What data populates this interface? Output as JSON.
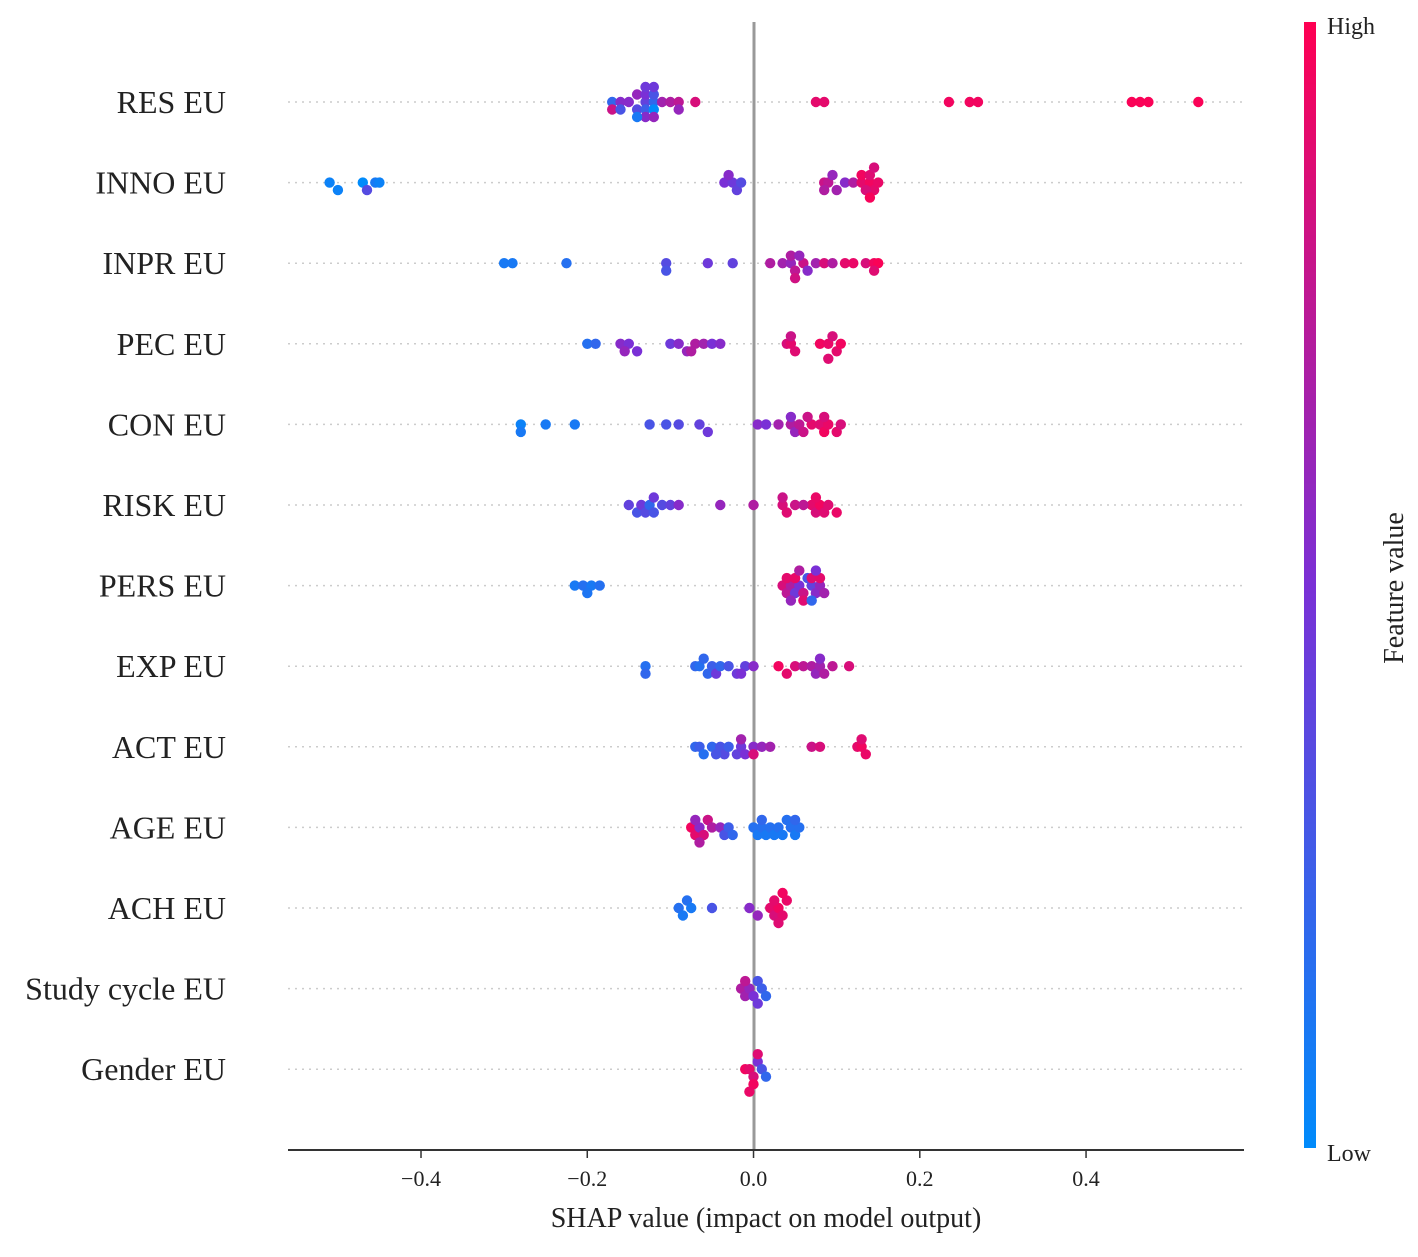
{
  "chart_data": {
    "type": "scatter",
    "subtype": "shap-beeswarm",
    "xlabel": "SHAP value (impact on model output)",
    "xlim": [
      -0.56,
      0.59
    ],
    "xticks": [
      {
        "value": -0.4,
        "label": "−0.4"
      },
      {
        "value": -0.2,
        "label": "−0.2"
      },
      {
        "value": 0.0,
        "label": "0.0"
      },
      {
        "value": 0.2,
        "label": "0.2"
      },
      {
        "value": 0.4,
        "label": "0.4"
      }
    ],
    "colorbar": {
      "title": "Feature value",
      "high_label": "High",
      "low_label": "Low",
      "colors": [
        "#008bfb",
        "#7a30d6",
        "#ff0052"
      ]
    },
    "features": [
      {
        "name": "RES EU",
        "points": [
          [
            -0.17,
            0.2
          ],
          [
            -0.16,
            0.55
          ],
          [
            -0.17,
            0.8
          ],
          [
            -0.16,
            0.3
          ],
          [
            -0.15,
            0.55
          ],
          [
            -0.14,
            0.35
          ],
          [
            -0.14,
            0.6
          ],
          [
            -0.13,
            0.4
          ],
          [
            -0.13,
            0.25
          ],
          [
            -0.13,
            0.5
          ],
          [
            -0.12,
            0.2
          ],
          [
            -0.12,
            0.0
          ],
          [
            -0.12,
            0.3
          ],
          [
            -0.13,
            0.55
          ],
          [
            -0.12,
            0.6
          ],
          [
            -0.11,
            0.65
          ],
          [
            -0.1,
            0.7
          ],
          [
            -0.09,
            0.75
          ],
          [
            -0.09,
            0.6
          ],
          [
            -0.07,
            0.85
          ],
          [
            -0.14,
            0.1
          ],
          [
            -0.13,
            0.45
          ],
          [
            -0.12,
            0.45
          ],
          [
            0.075,
            0.9
          ],
          [
            0.085,
            0.9
          ],
          [
            0.235,
            0.95
          ],
          [
            0.26,
            0.95
          ],
          [
            0.27,
            0.95
          ],
          [
            0.455,
            0.98
          ],
          [
            0.465,
            0.98
          ],
          [
            0.475,
            0.98
          ],
          [
            0.535,
            0.98
          ]
        ]
      },
      {
        "name": "INNO EU",
        "points": [
          [
            -0.51,
            0.05
          ],
          [
            -0.5,
            0.05
          ],
          [
            -0.47,
            0.0
          ],
          [
            -0.465,
            0.35
          ],
          [
            -0.455,
            0.1
          ],
          [
            -0.45,
            0.05
          ],
          [
            -0.035,
            0.5
          ],
          [
            -0.025,
            0.45
          ],
          [
            -0.02,
            0.4
          ],
          [
            -0.015,
            0.35
          ],
          [
            -0.03,
            0.55
          ],
          [
            0.085,
            0.8
          ],
          [
            0.09,
            0.75
          ],
          [
            0.1,
            0.65
          ],
          [
            0.11,
            0.55
          ],
          [
            0.12,
            0.7
          ],
          [
            0.13,
            0.9
          ],
          [
            0.14,
            0.95
          ],
          [
            0.145,
            0.9
          ],
          [
            0.15,
            0.92
          ],
          [
            0.135,
            0.85
          ],
          [
            0.13,
            0.95
          ],
          [
            0.14,
            0.88
          ],
          [
            0.085,
            0.7
          ],
          [
            0.095,
            0.6
          ],
          [
            0.14,
            0.97
          ],
          [
            0.145,
            0.85
          ]
        ]
      },
      {
        "name": "INPR EU",
        "points": [
          [
            -0.3,
            0.1
          ],
          [
            -0.29,
            0.1
          ],
          [
            -0.225,
            0.15
          ],
          [
            -0.105,
            0.35
          ],
          [
            -0.105,
            0.3
          ],
          [
            -0.055,
            0.45
          ],
          [
            -0.025,
            0.4
          ],
          [
            0.02,
            0.7
          ],
          [
            0.035,
            0.65
          ],
          [
            0.045,
            0.6
          ],
          [
            0.05,
            0.75
          ],
          [
            0.06,
            0.8
          ],
          [
            0.065,
            0.55
          ],
          [
            0.075,
            0.65
          ],
          [
            0.085,
            0.85
          ],
          [
            0.095,
            0.7
          ],
          [
            0.11,
            0.9
          ],
          [
            0.12,
            0.92
          ],
          [
            0.135,
            0.85
          ],
          [
            0.145,
            0.95
          ],
          [
            0.15,
            0.98
          ],
          [
            0.045,
            0.7
          ],
          [
            0.055,
            0.6
          ],
          [
            0.145,
            0.88
          ],
          [
            0.05,
            0.82
          ]
        ]
      },
      {
        "name": "PEC EU",
        "points": [
          [
            -0.2,
            0.15
          ],
          [
            -0.19,
            0.2
          ],
          [
            -0.16,
            0.55
          ],
          [
            -0.15,
            0.5
          ],
          [
            -0.155,
            0.6
          ],
          [
            -0.14,
            0.5
          ],
          [
            -0.1,
            0.45
          ],
          [
            -0.09,
            0.55
          ],
          [
            -0.08,
            0.6
          ],
          [
            -0.07,
            0.7
          ],
          [
            -0.06,
            0.65
          ],
          [
            -0.05,
            0.5
          ],
          [
            -0.04,
            0.55
          ],
          [
            -0.075,
            0.7
          ],
          [
            0.04,
            0.85
          ],
          [
            0.045,
            0.9
          ],
          [
            0.05,
            0.88
          ],
          [
            0.08,
            0.95
          ],
          [
            0.09,
            0.92
          ],
          [
            0.1,
            0.9
          ],
          [
            0.105,
            0.95
          ],
          [
            0.095,
            0.85
          ],
          [
            0.045,
            0.8
          ],
          [
            0.09,
            0.88
          ]
        ]
      },
      {
        "name": "CON EU",
        "points": [
          [
            -0.28,
            0.05
          ],
          [
            -0.28,
            0.1
          ],
          [
            -0.25,
            0.1
          ],
          [
            -0.215,
            0.1
          ],
          [
            -0.125,
            0.3
          ],
          [
            -0.105,
            0.3
          ],
          [
            -0.09,
            0.35
          ],
          [
            -0.065,
            0.4
          ],
          [
            -0.055,
            0.45
          ],
          [
            0.005,
            0.55
          ],
          [
            0.015,
            0.5
          ],
          [
            0.03,
            0.65
          ],
          [
            0.045,
            0.7
          ],
          [
            0.05,
            0.6
          ],
          [
            0.055,
            0.75
          ],
          [
            0.06,
            0.8
          ],
          [
            0.07,
            0.9
          ],
          [
            0.08,
            0.88
          ],
          [
            0.085,
            0.95
          ],
          [
            0.09,
            0.92
          ],
          [
            0.1,
            0.9
          ],
          [
            0.105,
            0.85
          ],
          [
            0.085,
            0.85
          ],
          [
            0.045,
            0.55
          ],
          [
            0.065,
            0.8
          ]
        ]
      },
      {
        "name": "RISK EU",
        "points": [
          [
            -0.15,
            0.4
          ],
          [
            -0.14,
            0.3
          ],
          [
            -0.135,
            0.45
          ],
          [
            -0.13,
            0.35
          ],
          [
            -0.125,
            0.2
          ],
          [
            -0.12,
            0.3
          ],
          [
            -0.11,
            0.35
          ],
          [
            -0.1,
            0.4
          ],
          [
            -0.09,
            0.55
          ],
          [
            -0.12,
            0.45
          ],
          [
            -0.04,
            0.6
          ],
          [
            0.0,
            0.7
          ],
          [
            0.035,
            0.85
          ],
          [
            0.04,
            0.88
          ],
          [
            0.05,
            0.8
          ],
          [
            0.07,
            0.9
          ],
          [
            0.075,
            0.85
          ],
          [
            0.08,
            0.95
          ],
          [
            0.09,
            0.88
          ],
          [
            0.1,
            0.92
          ],
          [
            0.075,
            0.92
          ],
          [
            0.085,
            0.88
          ],
          [
            0.035,
            0.8
          ],
          [
            0.06,
            0.75
          ]
        ]
      },
      {
        "name": "PERS EU",
        "points": [
          [
            -0.215,
            0.1
          ],
          [
            -0.205,
            0.15
          ],
          [
            -0.195,
            0.1
          ],
          [
            -0.185,
            0.15
          ],
          [
            -0.2,
            0.12
          ],
          [
            0.035,
            0.85
          ],
          [
            0.04,
            0.75
          ],
          [
            0.045,
            0.7
          ],
          [
            0.05,
            0.45
          ],
          [
            0.055,
            0.5
          ],
          [
            0.06,
            0.8
          ],
          [
            0.065,
            0.3
          ],
          [
            0.07,
            0.4
          ],
          [
            0.075,
            0.55
          ],
          [
            0.08,
            0.6
          ],
          [
            0.085,
            0.65
          ],
          [
            0.04,
            0.9
          ],
          [
            0.05,
            0.92
          ],
          [
            0.06,
            0.88
          ],
          [
            0.07,
            0.88
          ],
          [
            0.08,
            0.9
          ],
          [
            0.045,
            0.6
          ],
          [
            0.055,
            0.7
          ],
          [
            0.07,
            0.2
          ],
          [
            0.075,
            0.5
          ]
        ]
      },
      {
        "name": "EXP EU",
        "points": [
          [
            -0.13,
            0.15
          ],
          [
            -0.13,
            0.2
          ],
          [
            -0.07,
            0.2
          ],
          [
            -0.065,
            0.15
          ],
          [
            -0.055,
            0.2
          ],
          [
            -0.05,
            0.25
          ],
          [
            -0.045,
            0.45
          ],
          [
            -0.04,
            0.2
          ],
          [
            -0.03,
            0.3
          ],
          [
            -0.02,
            0.45
          ],
          [
            -0.01,
            0.4
          ],
          [
            -0.015,
            0.5
          ],
          [
            0.0,
            0.55
          ],
          [
            -0.06,
            0.2
          ],
          [
            0.03,
            0.95
          ],
          [
            0.04,
            0.9
          ],
          [
            0.05,
            0.85
          ],
          [
            0.06,
            0.75
          ],
          [
            0.07,
            0.7
          ],
          [
            0.075,
            0.6
          ],
          [
            0.08,
            0.65
          ],
          [
            0.085,
            0.7
          ],
          [
            0.095,
            0.75
          ],
          [
            0.115,
            0.85
          ],
          [
            0.08,
            0.55
          ]
        ]
      },
      {
        "name": "ACT EU",
        "points": [
          [
            -0.07,
            0.2
          ],
          [
            -0.065,
            0.25
          ],
          [
            -0.06,
            0.15
          ],
          [
            -0.05,
            0.2
          ],
          [
            -0.04,
            0.3
          ],
          [
            -0.035,
            0.35
          ],
          [
            -0.03,
            0.25
          ],
          [
            -0.02,
            0.4
          ],
          [
            -0.015,
            0.45
          ],
          [
            -0.01,
            0.5
          ],
          [
            0.0,
            0.55
          ],
          [
            0.01,
            0.6
          ],
          [
            0.02,
            0.65
          ],
          [
            -0.015,
            0.65
          ],
          [
            0.0,
            0.85
          ],
          [
            -0.045,
            0.3
          ],
          [
            0.07,
            0.8
          ],
          [
            0.08,
            0.85
          ],
          [
            0.125,
            0.9
          ],
          [
            0.13,
            0.95
          ],
          [
            0.135,
            0.92
          ],
          [
            0.13,
            0.88
          ]
        ]
      },
      {
        "name": "AGE EU",
        "points": [
          [
            -0.075,
            0.95
          ],
          [
            -0.07,
            0.9
          ],
          [
            -0.065,
            0.55
          ],
          [
            -0.06,
            0.85
          ],
          [
            -0.055,
            0.8
          ],
          [
            -0.05,
            0.7
          ],
          [
            -0.04,
            0.6
          ],
          [
            -0.035,
            0.3
          ],
          [
            -0.03,
            0.25
          ],
          [
            -0.025,
            0.2
          ],
          [
            -0.07,
            0.6
          ],
          [
            -0.065,
            0.7
          ],
          [
            0.0,
            0.15
          ],
          [
            0.005,
            0.1
          ],
          [
            0.01,
            0.15
          ],
          [
            0.015,
            0.1
          ],
          [
            0.02,
            0.15
          ],
          [
            0.025,
            0.1
          ],
          [
            0.03,
            0.15
          ],
          [
            0.035,
            0.1
          ],
          [
            0.04,
            0.15
          ],
          [
            0.045,
            0.15
          ],
          [
            0.05,
            0.1
          ],
          [
            0.055,
            0.15
          ],
          [
            0.01,
            0.2
          ],
          [
            0.05,
            0.2
          ]
        ]
      },
      {
        "name": "ACH EU",
        "points": [
          [
            -0.09,
            0.15
          ],
          [
            -0.085,
            0.1
          ],
          [
            -0.08,
            0.15
          ],
          [
            -0.075,
            0.1
          ],
          [
            -0.05,
            0.3
          ],
          [
            -0.005,
            0.55
          ],
          [
            0.005,
            0.6
          ],
          [
            0.02,
            0.9
          ],
          [
            0.025,
            0.85
          ],
          [
            0.03,
            0.95
          ],
          [
            0.035,
            0.9
          ],
          [
            0.04,
            0.92
          ],
          [
            0.03,
            0.88
          ],
          [
            0.035,
            0.95
          ],
          [
            0.025,
            0.9
          ]
        ]
      },
      {
        "name": "Study cycle EU",
        "points": [
          [
            -0.015,
            0.7
          ],
          [
            -0.01,
            0.65
          ],
          [
            -0.005,
            0.6
          ],
          [
            0.0,
            0.5
          ],
          [
            0.005,
            0.3
          ],
          [
            0.01,
            0.25
          ],
          [
            0.015,
            0.2
          ],
          [
            -0.01,
            0.75
          ],
          [
            0.005,
            0.45
          ]
        ]
      },
      {
        "name": "Gender EU",
        "points": [
          [
            -0.01,
            0.95
          ],
          [
            -0.005,
            0.9
          ],
          [
            0.0,
            0.85
          ],
          [
            0.005,
            0.5
          ],
          [
            0.01,
            0.3
          ],
          [
            0.015,
            0.2
          ],
          [
            0.0,
            0.95
          ],
          [
            0.005,
            0.88
          ],
          [
            -0.005,
            0.92
          ]
        ]
      }
    ]
  }
}
